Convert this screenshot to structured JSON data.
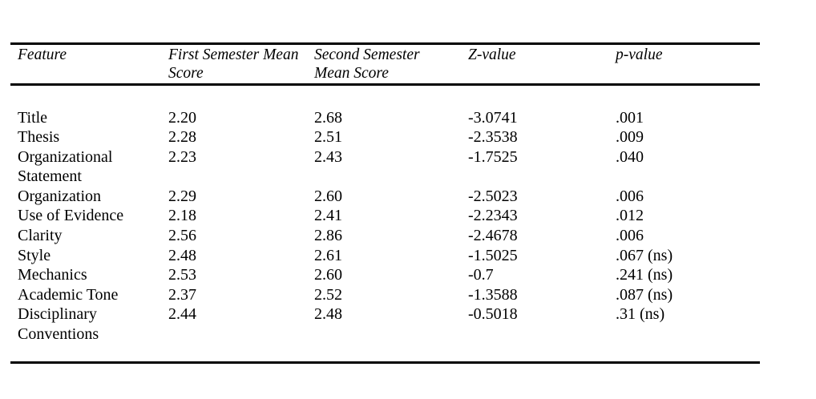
{
  "table": {
    "columns": [
      {
        "key": "feature",
        "label": "Feature"
      },
      {
        "key": "first",
        "label": "First Semester Mean\nScore"
      },
      {
        "key": "second",
        "label": "Second Semester\nMean Score"
      },
      {
        "key": "z",
        "label": "Z-value"
      },
      {
        "key": "p",
        "label": "p-value"
      }
    ],
    "rows": [
      {
        "feature": "Title",
        "first": "2.20",
        "second": "2.68",
        "z": "-3.0741",
        "p": ".001"
      },
      {
        "feature": "Thesis",
        "first": "2.28",
        "second": "2.51",
        "z": "-2.3538",
        "p": ".009"
      },
      {
        "feature": "Organizational Statement",
        "first": "2.23",
        "second": "2.43",
        "z": "-1.7525",
        "p": ".040"
      },
      {
        "feature": "Organization",
        "first": "2.29",
        "second": "2.60",
        "z": "-2.5023",
        "p": ".006"
      },
      {
        "feature": "Use of Evidence",
        "first": "2.18",
        "second": "2.41",
        "z": "-2.2343",
        "p": ".012"
      },
      {
        "feature": "Clarity",
        "first": "2.56",
        "second": "2.86",
        "z": "-2.4678",
        "p": ".006"
      },
      {
        "feature": "Style",
        "first": "2.48",
        "second": "2.61",
        "z": "-1.5025",
        "p": ".067 (ns)"
      },
      {
        "feature": "Mechanics",
        "first": "2.53",
        "second": "2.60",
        "z": "-0.7",
        "p": ".241 (ns)"
      },
      {
        "feature": "Academic Tone",
        "first": "2.37",
        "second": "2.52",
        "z": "-1.3588",
        "p": ".087 (ns)"
      },
      {
        "feature": "Disciplinary Conventions",
        "first": "2.44",
        "second": "2.48",
        "z": "-0.5018",
        "p": ".31 (ns)"
      }
    ]
  },
  "colors": {
    "text": "#000000",
    "background": "#ffffff",
    "rule": "#000000"
  }
}
